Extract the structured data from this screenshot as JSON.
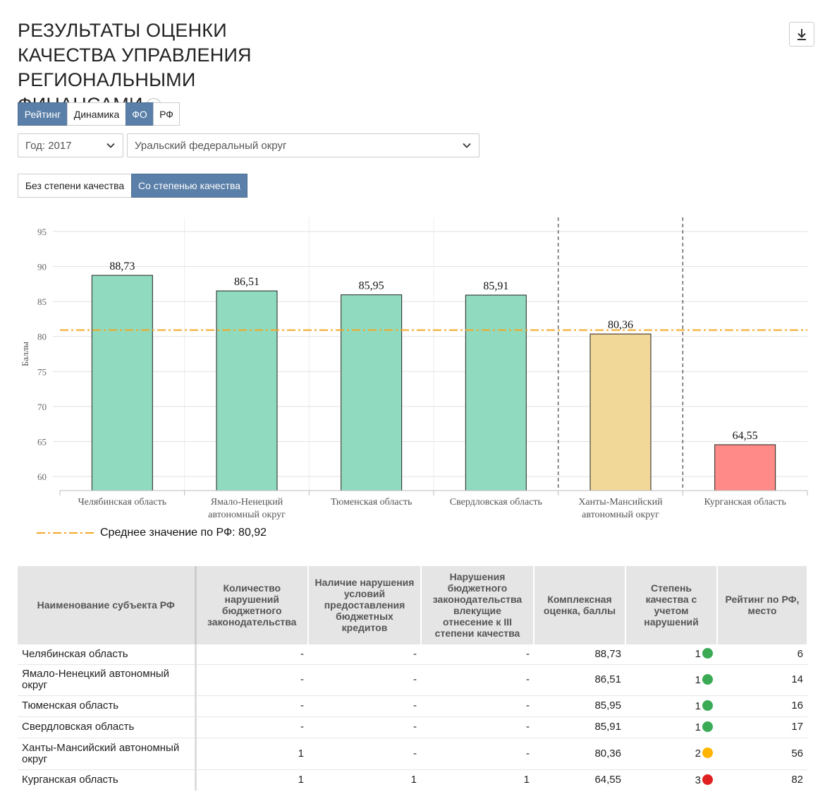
{
  "header": {
    "title": "РЕЗУЛЬТАТЫ ОЦЕНКИ КАЧЕСТВА УПРАВЛЕНИЯ РЕГИОНАЛЬНЫМИ ФИНАНСАМИ",
    "info_label": "i"
  },
  "toggles": {
    "view": [
      "Рейтинг",
      "Динамика"
    ],
    "scope": [
      "ФО",
      "РФ"
    ],
    "quality": [
      "Без степени качества",
      "Со степенью качества"
    ]
  },
  "filters": {
    "year": "Год: 2017",
    "district": "Уральский федеральный округ"
  },
  "chart_data": {
    "type": "bar",
    "ylabel": "Баллы",
    "xlabel": "",
    "ylim": [
      58,
      97
    ],
    "yticks": [
      60,
      65,
      70,
      75,
      80,
      85,
      90,
      95
    ],
    "categories": [
      [
        "Челябинская область"
      ],
      [
        "Ямало-Ненецкий",
        "автономный округ"
      ],
      [
        "Тюменская область"
      ],
      [
        "Свердловская область"
      ],
      [
        "Ханты-Мансийский",
        "автономный округ"
      ],
      [
        "Курганская область"
      ]
    ],
    "values": [
      88.73,
      86.51,
      85.95,
      85.91,
      80.36,
      64.55
    ],
    "value_labels": [
      "88,73",
      "86,51",
      "85,95",
      "85,91",
      "80,36",
      "64,55"
    ],
    "grades": [
      1,
      1,
      1,
      1,
      2,
      3
    ],
    "group_separators_after": [
      4,
      5
    ],
    "reference_line": {
      "value": 80.92,
      "label": "Среднее значение по РФ: 80,92"
    },
    "grid": true,
    "colors": {
      "grade1": "#90dbbf",
      "grade2": "#f2d898",
      "grade3": "#ff8a87",
      "average": "#f5a623"
    }
  },
  "table": {
    "headers": [
      "Наименование субъекта РФ",
      "Количество нарушений бюджетного законодательства",
      "Наличие нарушения условий предоставления бюджетных кредитов",
      "Нарушения бюджетного законодательства влекущие отнесение к III степени качества",
      "Комплексная оценка, баллы",
      "Степень качества с учетом нарушений",
      "Рейтинг по РФ, место"
    ],
    "rows": [
      {
        "name": "Челябинская область",
        "violations": "-",
        "credit": "-",
        "grade3": "-",
        "score": "88,73",
        "grade": "1",
        "rank": "6"
      },
      {
        "name": "Ямало-Ненецкий автономный округ",
        "violations": "-",
        "credit": "-",
        "grade3": "-",
        "score": "86,51",
        "grade": "1",
        "rank": "14"
      },
      {
        "name": "Тюменская область",
        "violations": "-",
        "credit": "-",
        "grade3": "-",
        "score": "85,95",
        "grade": "1",
        "rank": "16"
      },
      {
        "name": "Свердловская область",
        "violations": "-",
        "credit": "-",
        "grade3": "-",
        "score": "85,91",
        "grade": "1",
        "rank": "17"
      },
      {
        "name": "Ханты-Мансийский автономный округ",
        "violations": "1",
        "credit": "-",
        "grade3": "-",
        "score": "80,36",
        "grade": "2",
        "rank": "56"
      },
      {
        "name": "Курганская область",
        "violations": "1",
        "credit": "1",
        "grade3": "1",
        "score": "64,55",
        "grade": "3",
        "rank": "82"
      }
    ],
    "dot_colors": {
      "1": "#3aaa55",
      "2": "#ffb400",
      "3": "#e02020"
    }
  }
}
